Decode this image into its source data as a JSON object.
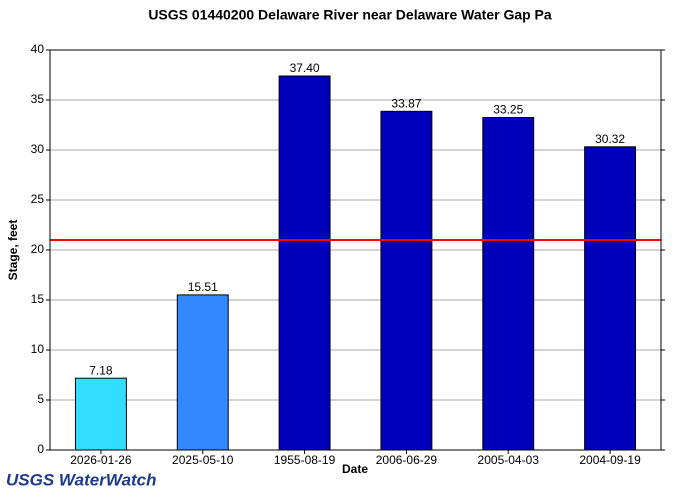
{
  "chart_data": {
    "type": "bar",
    "title": "USGS 01440200 Delaware River near Delaware Water Gap Pa",
    "x_label": "Date",
    "y_label": "Stage, feet",
    "categories": [
      "2026-01-26",
      "2025-05-10",
      "1955-08-19",
      "2006-06-29",
      "2005-04-03",
      "2004-09-19"
    ],
    "values": [
      7.18,
      15.51,
      37.4,
      33.87,
      33.25,
      30.32
    ],
    "value_labels": [
      "7.18",
      "15.51",
      "37.40",
      "33.87",
      "33.25",
      "30.32"
    ],
    "colors": [
      "#33ddff",
      "#3388ff",
      "#0000bb",
      "#0000bb",
      "#0000bb",
      "#0000bb"
    ],
    "ylim": [
      0,
      40
    ],
    "yticks": [
      0,
      5,
      10,
      15,
      20,
      25,
      30,
      35,
      40
    ],
    "grid": true,
    "reference_line": {
      "value": 21,
      "color": "#ff0000"
    },
    "logo": "USGS WaterWatch"
  }
}
